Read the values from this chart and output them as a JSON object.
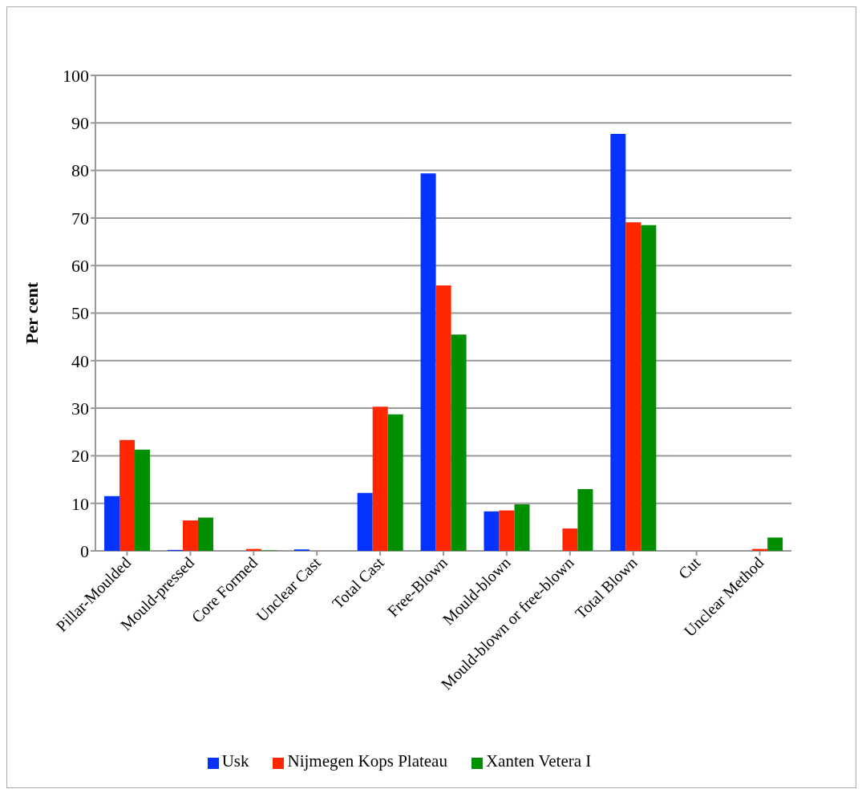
{
  "chart_data": {
    "type": "bar",
    "ylabel": "Per cent",
    "categories": [
      "Pillar-Moulded",
      "Mould-pressed",
      "Core Formed",
      "Unclear Cast",
      "Total Cast",
      "Free-Blown",
      "Mould-blown",
      "Mould-blown or free-blown",
      "Total Blown",
      "Cut",
      "Unclear Method"
    ],
    "series": [
      {
        "name": "Usk",
        "color": "#0433ff",
        "values": [
          11.5,
          0.2,
          0,
          0.3,
          12.2,
          79.4,
          8.3,
          0,
          87.7,
          0,
          0
        ]
      },
      {
        "name": "Nijmegen Kops Plateau",
        "color": "#ff2600",
        "values": [
          23.3,
          6.4,
          0.4,
          0,
          30.3,
          55.8,
          8.5,
          4.7,
          69.1,
          0,
          0.4
        ]
      },
      {
        "name": "Xanten Vetera I",
        "color": "#008f00",
        "values": [
          21.3,
          7.0,
          0.1,
          0,
          28.7,
          45.5,
          9.8,
          13.0,
          68.5,
          0,
          2.8
        ]
      }
    ],
    "ylim": [
      0,
      100
    ],
    "yticks": [
      0,
      10,
      20,
      30,
      40,
      50,
      60,
      70,
      80,
      90,
      100
    ],
    "grid": "y",
    "legend": "bottom"
  }
}
